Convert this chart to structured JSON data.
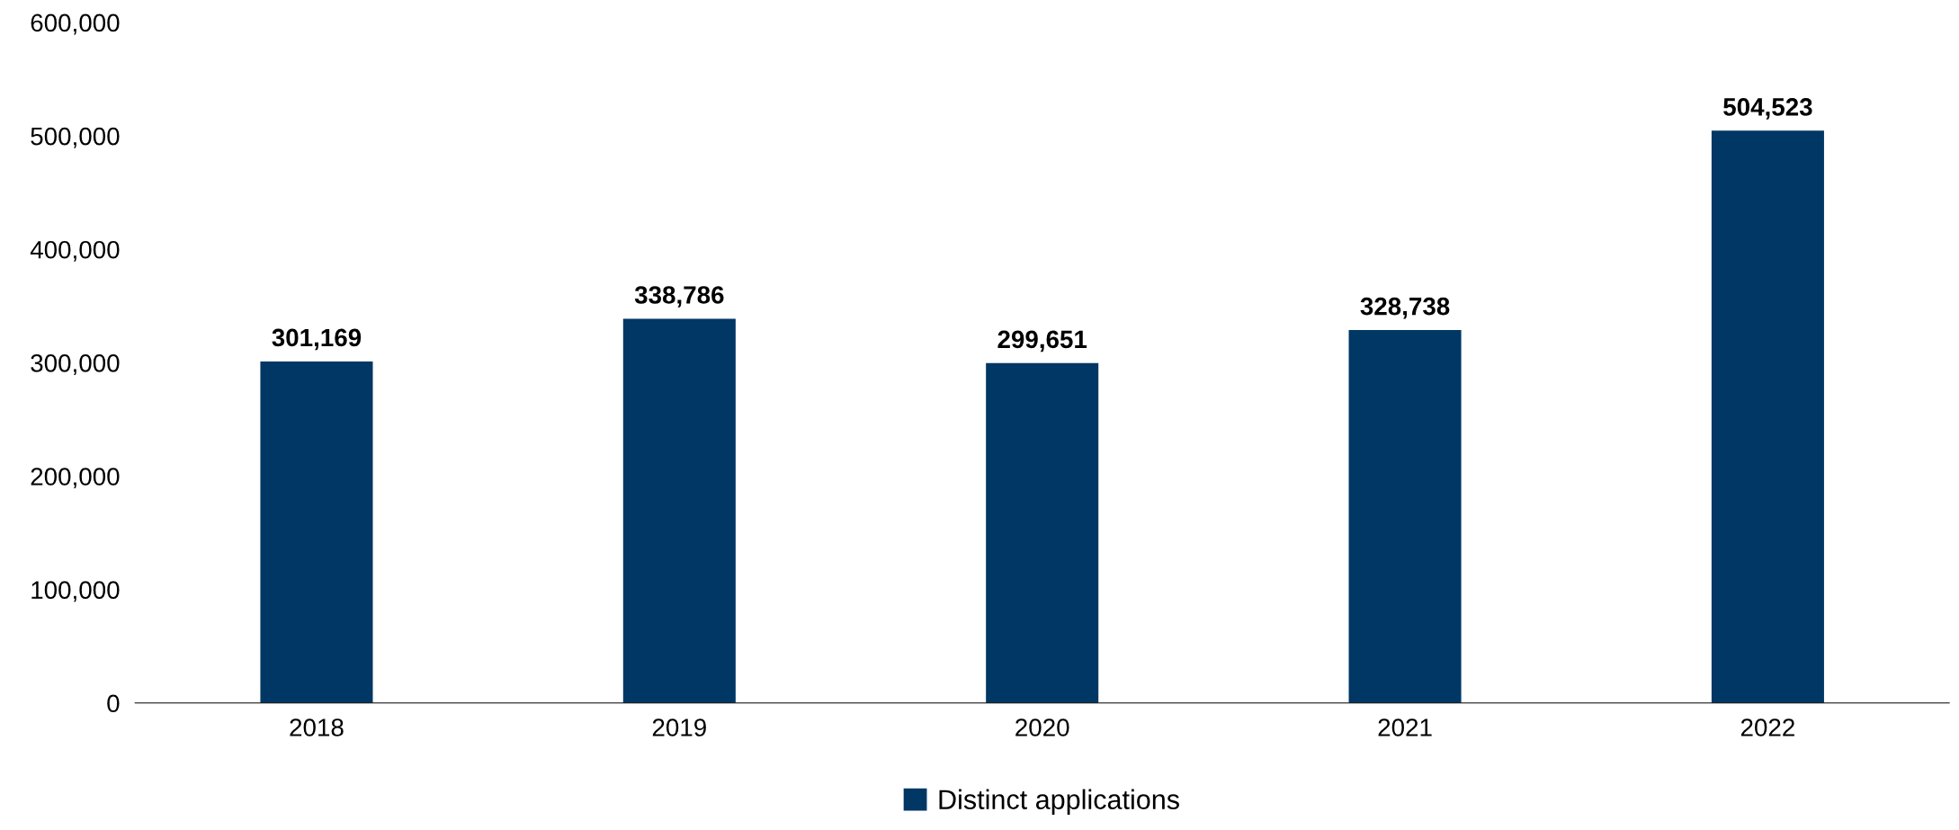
{
  "chart_data": {
    "type": "bar",
    "categories": [
      "2018",
      "2019",
      "2020",
      "2021",
      "2022"
    ],
    "series": [
      {
        "name": "Distinct applications",
        "color": "#003764",
        "values": [
          301169,
          338786,
          299651,
          328738,
          504523
        ],
        "value_labels": [
          "301,169",
          "338,786",
          "299,651",
          "328,738",
          "504,523"
        ]
      }
    ],
    "ylim": [
      0,
      600000
    ],
    "yticks": [
      {
        "value": 0,
        "label": "0"
      },
      {
        "value": 100000,
        "label": "100,000"
      },
      {
        "value": 200000,
        "label": "200,000"
      },
      {
        "value": 300000,
        "label": "300,000"
      },
      {
        "value": 400000,
        "label": "400,000"
      },
      {
        "value": 500000,
        "label": "500,000"
      },
      {
        "value": 600000,
        "label": "600,000"
      }
    ],
    "grid": false,
    "legend": "bottom"
  }
}
